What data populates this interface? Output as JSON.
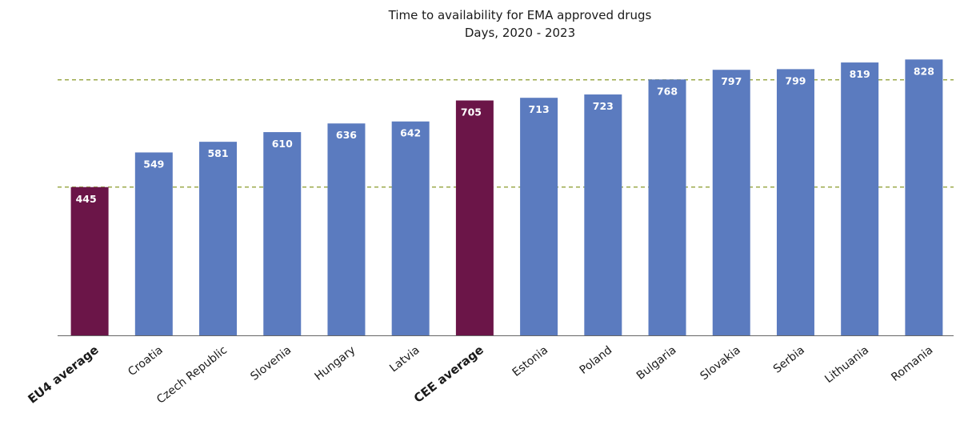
{
  "chart_data": {
    "type": "bar",
    "title": "Time to availability for EMA approved drugs",
    "subtitle": "Days, 2020 - 2023",
    "categories": [
      "EU4 average",
      "Croatia",
      "Czech Republic",
      "Slovenia",
      "Hungary",
      "Latvia",
      "CEE average",
      "Estonia",
      "Poland",
      "Bulgaria",
      "Slovakia",
      "Serbia",
      "Lithuania",
      "Romania"
    ],
    "values": [
      445,
      549,
      581,
      610,
      636,
      642,
      705,
      713,
      723,
      768,
      797,
      799,
      819,
      828
    ],
    "highlight": [
      true,
      false,
      false,
      false,
      false,
      false,
      true,
      false,
      false,
      false,
      false,
      false,
      false,
      false
    ],
    "ylim": [
      0,
      860
    ],
    "reference_lines": [
      445,
      767
    ],
    "grid": false,
    "xlabel": "",
    "ylabel": "",
    "colors": {
      "bar": "#5b7bbf",
      "highlight": "#6b1548",
      "reference_line": "#8a9a2a",
      "axis": "#666666"
    }
  }
}
